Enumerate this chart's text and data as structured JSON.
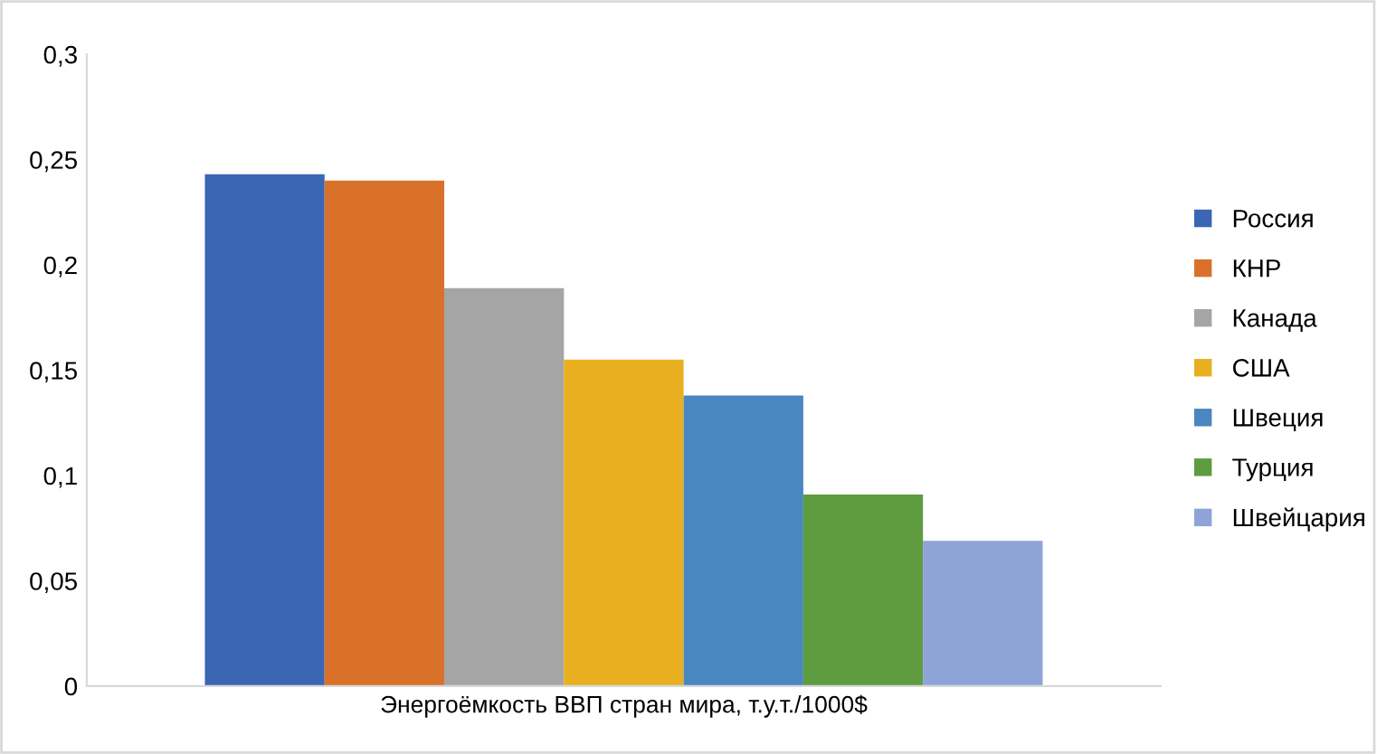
{
  "chart_data": {
    "type": "bar",
    "categories": [
      "Энергоёмкость ВВП стран мира, т.у.т./1000$"
    ],
    "series": [
      {
        "name": "Россия",
        "color": "#3a66b3",
        "values": [
          0.243
        ]
      },
      {
        "name": "КНР",
        "color": "#d9712b",
        "values": [
          0.24
        ]
      },
      {
        "name": "Канада",
        "color": "#a5a5a5",
        "values": [
          0.189
        ]
      },
      {
        "name": "США",
        "color": "#e8b020",
        "values": [
          0.155
        ]
      },
      {
        "name": "Швеция",
        "color": "#4a86c0",
        "values": [
          0.138
        ]
      },
      {
        "name": "Турция",
        "color": "#5f9c3f",
        "values": [
          0.091
        ]
      },
      {
        "name": "Швейцария",
        "color": "#8ea4d6",
        "values": [
          0.069
        ]
      }
    ],
    "ylim": [
      0,
      0.3
    ],
    "yticks": [
      0,
      {
        "value": 0.05,
        "label": "0,05"
      },
      {
        "value": 0.1,
        "label": "0,1"
      },
      {
        "value": 0.15,
        "label": "0,15"
      },
      {
        "value": 0.2,
        "label": "0,2"
      },
      {
        "value": 0.25,
        "label": "0,25"
      },
      {
        "value": 0.3,
        "label": "0,3"
      }
    ],
    "grid": false,
    "legend": "right"
  }
}
